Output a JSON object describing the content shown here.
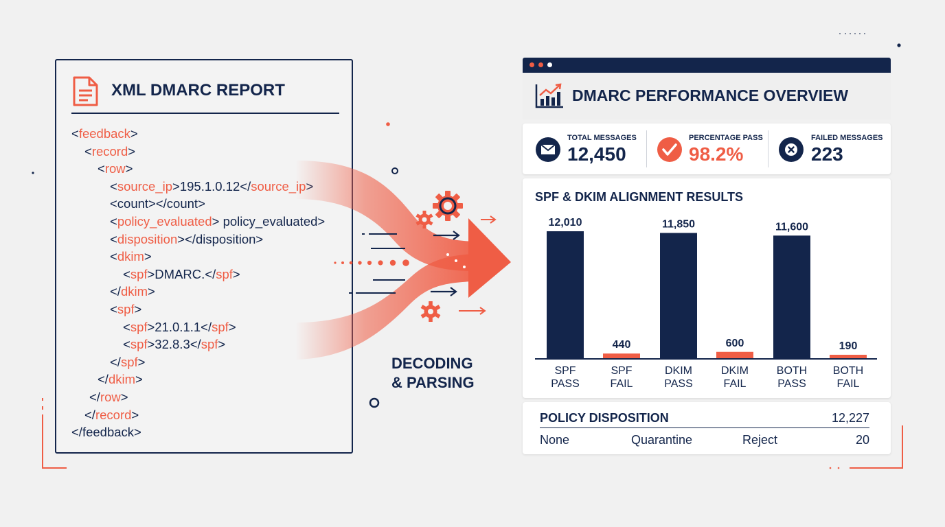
{
  "xml_report": {
    "title": "XML DMARC REPORT",
    "lines": [
      {
        "pre": "<",
        "tag": "feedback",
        "post": ">"
      },
      {
        "pre": "<",
        "tag": "record",
        "post": ">"
      },
      {
        "pre": "<",
        "tag": "row",
        "post": ">"
      },
      {
        "pre": "<",
        "tag": "source_ip",
        "mid": ">195.1.0.12</",
        "tag2": "source_ip",
        "post": ">"
      },
      {
        "pre": "<count></count>"
      },
      {
        "pre": "<",
        "tag": "policy_evaluated",
        "post": "> policy_evaluated>"
      },
      {
        "pre": "<",
        "tag": "disposition",
        "post": "></disposition>"
      },
      {
        "pre": "<",
        "tag": "dkim",
        "post": ">"
      },
      {
        "pre": "<",
        "tag": "spf",
        "mid": ">DMARC.</",
        "tag2": "spf",
        "post": ">"
      },
      {
        "pre": "</",
        "tag": "dkim",
        "post": ">"
      },
      {
        "pre": "<",
        "tag": "spf",
        "post": ">"
      },
      {
        "pre": "<",
        "tag": "spf",
        "mid": ">21.0.1.1</",
        "tag2": "spf",
        "post": ">"
      },
      {
        "pre": "<",
        "tag": "spf",
        "mid": ">32.8.3</",
        "tag2": "spf",
        "post": ">"
      },
      {
        "pre": "</",
        "tag": "spf",
        "post": ">"
      },
      {
        "pre": "</",
        "tag": "dkim",
        "post": ">"
      },
      {
        "pre": "</",
        "tag": "row",
        "post": ">"
      },
      {
        "pre": "</",
        "tag": "record",
        "post": ">"
      },
      {
        "pre": "</feedback>"
      }
    ]
  },
  "process": {
    "label_line1": "DECODING",
    "label_line2": "& PARSING",
    "icons": [
      "gear-icon",
      "arrow-right-icon"
    ]
  },
  "dashboard": {
    "title": "DMARC PERFORMANCE OVERVIEW",
    "title_icon": "trend-chart-icon",
    "window_dots": [
      "#ef5d45",
      "#ef5d45",
      "#ffffff"
    ],
    "stats": [
      {
        "label": "TOTAL MESSAGES",
        "value": "12,450",
        "icon": "envelope-icon",
        "color": "#13254b"
      },
      {
        "label": "PERCENTAGE PASS",
        "value": "98.2%",
        "icon": "check-icon",
        "color": "#ef5d45"
      },
      {
        "label": "FAILED MESSAGES",
        "value": "223",
        "icon": "x-circle-icon",
        "color": "#13254b"
      }
    ],
    "policy": {
      "title": "POLICY DISPOSITION",
      "total": "12,227",
      "none_label": "None",
      "quarantine_label": "Quarantine",
      "reject_label": "Reject",
      "reject_value": "20"
    }
  },
  "chart_data": {
    "type": "bar",
    "title": "SPF & DKIM ALIGNMENT RESULTS",
    "categories": [
      [
        "SPF",
        "PASS"
      ],
      [
        "SPF",
        "FAIL"
      ],
      [
        "DKIM",
        "PASS"
      ],
      [
        "DKIM",
        "FAIL"
      ],
      [
        "BOTH",
        "PASS"
      ],
      [
        "BOTH",
        "FAIL"
      ]
    ],
    "values": [
      12010,
      440,
      11850,
      600,
      11600,
      190
    ],
    "value_labels": [
      "12,010",
      "440",
      "11,850",
      "600",
      "11,600",
      "190"
    ],
    "bar_colors": [
      "#13254b",
      "#ef5d45",
      "#13254b",
      "#ef5d45",
      "#13254b",
      "#ef5d45"
    ],
    "ylim": [
      0,
      12010
    ],
    "grid": false,
    "legend": "none",
    "xlabel": "",
    "ylabel": ""
  },
  "colors": {
    "navy": "#13254b",
    "coral": "#ef5d45",
    "background": "#f1f1f1"
  }
}
